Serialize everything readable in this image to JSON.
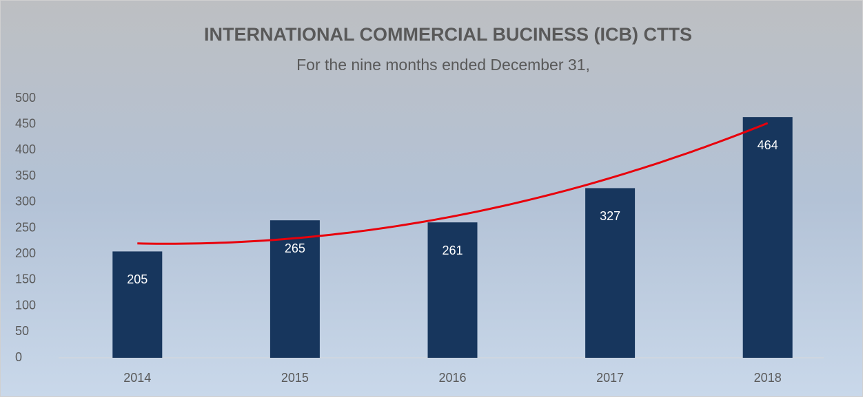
{
  "chart_data": {
    "type": "bar",
    "title": "INTERNATIONAL COMMERCIAL BUCINESS (ICB) CTTS",
    "subtitle": "For the nine months ended December 31,",
    "categories": [
      "2014",
      "2015",
      "2016",
      "2017",
      "2018"
    ],
    "values": [
      205,
      265,
      261,
      327,
      464
    ],
    "color": "#17365d",
    "ylim": [
      0,
      500
    ],
    "yticks": [
      0,
      50,
      100,
      150,
      200,
      250,
      300,
      350,
      400,
      450,
      500
    ],
    "grid": false,
    "trendline": {
      "type": "polynomial",
      "order": 2,
      "color": "#e8000b"
    }
  }
}
